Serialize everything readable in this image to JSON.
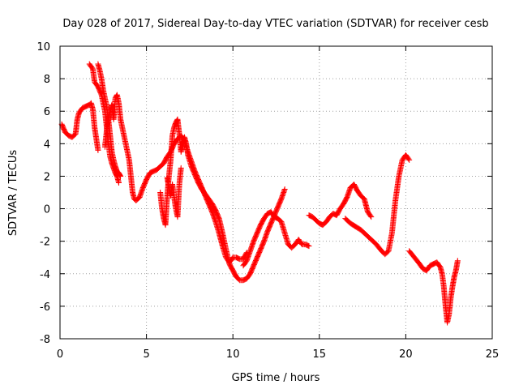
{
  "chart_data": {
    "type": "scatter",
    "title": "Day 028 of 2017, Sidereal Day-to-day VTEC variation (SDTVAR) for receiver cesb",
    "xlabel": "GPS time / hours",
    "ylabel": "SDTVAR / TECUs",
    "xlim": [
      0,
      25
    ],
    "ylim": [
      -8,
      10
    ],
    "x_ticks": [
      "0",
      "5",
      "10",
      "15",
      "20",
      "25"
    ],
    "y_ticks": [
      "-8",
      "-6",
      "-4",
      "-2",
      "0",
      "2",
      "4",
      "6",
      "8",
      "10"
    ],
    "grid": true,
    "marker": "+",
    "marker_color": "#ff0000",
    "series": [
      {
        "name": "s1",
        "points": [
          [
            0.1,
            5.2
          ],
          [
            0.3,
            4.7
          ],
          [
            0.5,
            4.5
          ],
          [
            0.7,
            4.4
          ],
          [
            0.9,
            4.6
          ],
          [
            1.0,
            5.5
          ],
          [
            1.1,
            5.9
          ],
          [
            1.3,
            6.2
          ],
          [
            1.5,
            6.3
          ],
          [
            1.7,
            6.4
          ],
          [
            1.8,
            6.5
          ],
          [
            1.9,
            6.1
          ],
          [
            2.0,
            5.0
          ],
          [
            2.1,
            4.3
          ],
          [
            2.2,
            3.6
          ]
        ]
      },
      {
        "name": "s2",
        "points": [
          [
            1.7,
            8.9
          ],
          [
            1.9,
            8.6
          ],
          [
            2.0,
            7.8
          ],
          [
            2.2,
            7.5
          ],
          [
            2.4,
            7.0
          ],
          [
            2.5,
            6.5
          ],
          [
            2.6,
            6.0
          ],
          [
            2.7,
            5.0
          ],
          [
            2.8,
            4.0
          ],
          [
            2.9,
            3.2
          ],
          [
            3.0,
            2.8
          ],
          [
            3.1,
            2.5
          ],
          [
            3.2,
            2.2
          ],
          [
            3.3,
            2.0
          ],
          [
            3.4,
            1.6
          ]
        ]
      },
      {
        "name": "s3",
        "points": [
          [
            2.2,
            8.9
          ],
          [
            2.3,
            8.5
          ],
          [
            2.4,
            8.0
          ],
          [
            2.5,
            7.3
          ],
          [
            2.6,
            6.8
          ],
          [
            2.7,
            6.3
          ],
          [
            2.8,
            5.5
          ],
          [
            2.9,
            4.5
          ],
          [
            3.0,
            3.5
          ],
          [
            3.1,
            3.0
          ],
          [
            3.2,
            2.6
          ],
          [
            3.3,
            2.3
          ],
          [
            3.4,
            2.2
          ],
          [
            3.5,
            2.0
          ]
        ]
      },
      {
        "name": "s4",
        "points": [
          [
            2.6,
            3.8
          ],
          [
            2.7,
            4.8
          ],
          [
            2.8,
            5.6
          ],
          [
            2.9,
            6.0
          ],
          [
            3.0,
            6.4
          ],
          [
            3.1,
            5.5
          ],
          [
            3.2,
            6.8
          ],
          [
            3.3,
            7.0
          ],
          [
            3.4,
            6.5
          ],
          [
            3.5,
            5.5
          ],
          [
            3.6,
            5.0
          ],
          [
            3.7,
            4.5
          ],
          [
            3.8,
            4.0
          ],
          [
            3.9,
            3.5
          ],
          [
            4.0,
            3.0
          ],
          [
            4.1,
            2.0
          ],
          [
            4.2,
            1.0
          ],
          [
            4.3,
            0.6
          ],
          [
            4.4,
            0.5
          ],
          [
            4.6,
            0.7
          ],
          [
            4.8,
            1.3
          ],
          [
            5.0,
            1.8
          ],
          [
            5.2,
            2.2
          ],
          [
            5.4,
            2.3
          ],
          [
            5.6,
            2.4
          ],
          [
            5.8,
            2.6
          ],
          [
            6.0,
            2.8
          ],
          [
            6.2,
            3.2
          ],
          [
            6.4,
            3.5
          ],
          [
            6.6,
            4.0
          ],
          [
            6.8,
            4.3
          ],
          [
            7.0,
            4.5
          ],
          [
            7.2,
            4.2
          ],
          [
            7.4,
            3.5
          ],
          [
            7.6,
            2.9
          ],
          [
            7.8,
            2.3
          ],
          [
            8.0,
            1.8
          ],
          [
            8.2,
            1.3
          ],
          [
            8.4,
            0.8
          ],
          [
            8.6,
            0.3
          ],
          [
            8.8,
            -0.2
          ],
          [
            9.0,
            -0.8
          ],
          [
            9.2,
            -1.5
          ],
          [
            9.4,
            -2.3
          ],
          [
            9.6,
            -3.0
          ],
          [
            9.8,
            -3.3
          ],
          [
            10.0,
            -3.0
          ],
          [
            10.2,
            -3.0
          ],
          [
            10.4,
            -3.1
          ],
          [
            10.6,
            -3.1
          ],
          [
            10.8,
            -2.7
          ]
        ]
      },
      {
        "name": "s5",
        "points": [
          [
            5.8,
            1.0
          ],
          [
            5.9,
            0.0
          ],
          [
            6.0,
            -0.6
          ],
          [
            6.1,
            -1.0
          ],
          [
            6.2,
            0.8
          ],
          [
            6.3,
            2.0
          ],
          [
            6.4,
            3.0
          ],
          [
            6.5,
            4.5
          ],
          [
            6.6,
            5.0
          ],
          [
            6.7,
            5.3
          ],
          [
            6.8,
            5.5
          ],
          [
            6.9,
            4.6
          ],
          [
            7.0,
            3.5
          ],
          [
            7.1,
            3.9
          ],
          [
            7.2,
            4.4
          ],
          [
            7.3,
            4.0
          ],
          [
            7.4,
            3.3
          ],
          [
            7.6,
            2.6
          ],
          [
            7.8,
            2.1
          ],
          [
            8.0,
            1.6
          ],
          [
            8.2,
            1.2
          ],
          [
            8.4,
            0.9
          ],
          [
            8.6,
            0.6
          ],
          [
            8.8,
            0.3
          ],
          [
            9.0,
            -0.1
          ],
          [
            9.2,
            -0.6
          ],
          [
            9.4,
            -1.5
          ],
          [
            9.6,
            -2.5
          ],
          [
            9.8,
            -3.4
          ],
          [
            10.0,
            -3.8
          ],
          [
            10.2,
            -4.2
          ],
          [
            10.4,
            -4.4
          ],
          [
            10.6,
            -4.4
          ],
          [
            10.8,
            -4.3
          ],
          [
            11.0,
            -4.0
          ],
          [
            11.2,
            -3.5
          ],
          [
            11.4,
            -3.0
          ],
          [
            11.6,
            -2.5
          ],
          [
            11.8,
            -2.0
          ],
          [
            12.0,
            -1.4
          ],
          [
            12.2,
            -0.9
          ],
          [
            12.4,
            -0.4
          ],
          [
            12.6,
            0.1
          ],
          [
            12.8,
            0.6
          ],
          [
            13.0,
            1.2
          ]
        ]
      },
      {
        "name": "s6",
        "points": [
          [
            6.2,
            1.9
          ],
          [
            6.3,
            1.3
          ],
          [
            6.4,
            0.8
          ],
          [
            6.5,
            1.5
          ],
          [
            6.6,
            0.7
          ],
          [
            6.7,
            0.0
          ],
          [
            6.8,
            -0.5
          ],
          [
            6.9,
            1.5
          ],
          [
            7.0,
            2.5
          ]
        ]
      },
      {
        "name": "s7",
        "points": [
          [
            10.6,
            -3.5
          ],
          [
            10.8,
            -3.2
          ],
          [
            11.0,
            -2.6
          ],
          [
            11.2,
            -2.0
          ],
          [
            11.4,
            -1.5
          ],
          [
            11.6,
            -1.0
          ],
          [
            11.8,
            -0.6
          ],
          [
            12.0,
            -0.3
          ],
          [
            12.2,
            -0.2
          ],
          [
            12.4,
            -0.5
          ],
          [
            12.6,
            -0.6
          ],
          [
            12.8,
            -0.8
          ],
          [
            13.0,
            -1.5
          ],
          [
            13.2,
            -2.2
          ],
          [
            13.4,
            -2.4
          ],
          [
            13.6,
            -2.2
          ],
          [
            13.8,
            -1.9
          ],
          [
            14.0,
            -2.2
          ],
          [
            14.2,
            -2.2
          ],
          [
            14.4,
            -2.3
          ]
        ]
      },
      {
        "name": "s8",
        "points": [
          [
            14.4,
            -0.4
          ],
          [
            14.6,
            -0.5
          ],
          [
            14.8,
            -0.7
          ],
          [
            15.0,
            -0.9
          ],
          [
            15.2,
            -1.0
          ],
          [
            15.4,
            -0.8
          ],
          [
            15.6,
            -0.5
          ],
          [
            15.8,
            -0.3
          ],
          [
            16.0,
            -0.4
          ],
          [
            16.2,
            0.0
          ],
          [
            16.4,
            0.3
          ],
          [
            16.6,
            0.7
          ],
          [
            16.8,
            1.3
          ],
          [
            17.0,
            1.5
          ],
          [
            17.2,
            1.1
          ],
          [
            17.4,
            0.8
          ],
          [
            17.6,
            0.6
          ],
          [
            17.8,
            -0.2
          ],
          [
            18.0,
            -0.5
          ]
        ]
      },
      {
        "name": "s9",
        "points": [
          [
            16.5,
            -0.6
          ],
          [
            16.8,
            -0.9
          ],
          [
            17.1,
            -1.1
          ],
          [
            17.4,
            -1.3
          ],
          [
            17.7,
            -1.6
          ],
          [
            18.0,
            -1.9
          ],
          [
            18.3,
            -2.2
          ],
          [
            18.6,
            -2.6
          ],
          [
            18.8,
            -2.8
          ],
          [
            19.0,
            -2.6
          ],
          [
            19.2,
            -1.5
          ],
          [
            19.4,
            0.5
          ],
          [
            19.6,
            2.0
          ],
          [
            19.8,
            3.0
          ],
          [
            20.0,
            3.3
          ],
          [
            20.2,
            3.0
          ]
        ]
      },
      {
        "name": "s10",
        "points": [
          [
            20.2,
            -2.6
          ],
          [
            20.5,
            -3.0
          ],
          [
            20.8,
            -3.4
          ],
          [
            21.0,
            -3.7
          ],
          [
            21.2,
            -3.8
          ],
          [
            21.4,
            -3.5
          ],
          [
            21.6,
            -3.4
          ],
          [
            21.8,
            -3.3
          ],
          [
            22.0,
            -3.6
          ],
          [
            22.1,
            -4.0
          ],
          [
            22.2,
            -4.8
          ],
          [
            22.3,
            -6.0
          ],
          [
            22.4,
            -7.0
          ],
          [
            22.5,
            -6.5
          ],
          [
            22.6,
            -5.5
          ],
          [
            22.7,
            -4.8
          ],
          [
            22.8,
            -4.2
          ],
          [
            22.9,
            -3.8
          ],
          [
            23.0,
            -3.2
          ]
        ]
      }
    ]
  }
}
